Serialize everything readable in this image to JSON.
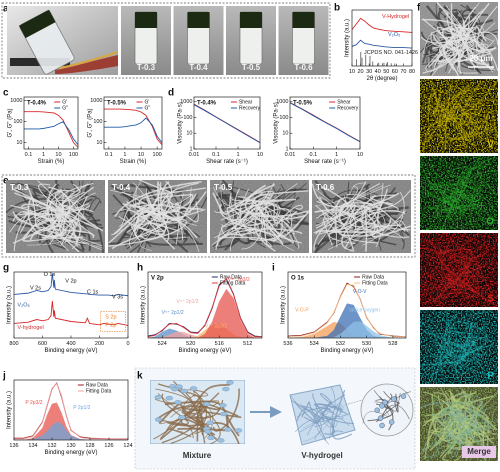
{
  "panel_labels": [
    "a",
    "b",
    "c",
    "d",
    "e",
    "f",
    "g",
    "h",
    "i",
    "j",
    "k"
  ],
  "a": {
    "labels": [
      "T-0.3",
      "T-0.4",
      "T-0.5",
      "T-0.6"
    ]
  },
  "e": {
    "labels": [
      "T-0.3",
      "T-0.4",
      "T-0.5",
      "T-0.6"
    ]
  },
  "f": {
    "scale_bar": "20 μm",
    "maps": [
      "V",
      "O",
      "S",
      "P",
      "Merge"
    ]
  },
  "k": {
    "labels": [
      "Mixture",
      "V-hydrogel"
    ]
  },
  "chart_data": [
    {
      "type": "line",
      "xlabel": "2θ (degree)",
      "ylabel": "Intensity (a.u.)",
      "x": [
        10,
        15,
        20,
        25,
        30,
        35,
        40,
        50,
        60,
        70,
        80
      ],
      "xlim": [
        10,
        80
      ],
      "xticks": [
        10,
        20,
        30,
        40,
        50,
        60,
        70,
        80
      ],
      "ylim": [
        0,
        10
      ],
      "legend": "inline",
      "series": [
        {
          "name": "V-Hydrogel",
          "color": "#d62728",
          "values": [
            6.5,
            7.5,
            8.5,
            8.0,
            7.3,
            6.8,
            6.6,
            6.3,
            6.2,
            6.1,
            6.0
          ]
        },
        {
          "name": "V₂O₅",
          "color": "#2c5aa0",
          "values": [
            3.5,
            3.8,
            4.6,
            4.0,
            3.9,
            3.7,
            3.6,
            3.4,
            3.3,
            3.3,
            3.2
          ]
        },
        {
          "name": "JCPDS NO. 041-1426",
          "color": "#222222",
          "style": "stick",
          "x": [
            15.4,
            20.3,
            21.7,
            26.1,
            31.0,
            34.3,
            41.3,
            45.5,
            47.3,
            51.2,
            55.7,
            62.1
          ],
          "values": [
            1.2,
            2.5,
            1.5,
            2.0,
            1.8,
            0.8,
            0.6,
            0.5,
            0.6,
            0.7,
            0.5,
            0.4
          ]
        }
      ]
    },
    {
      "type": "line",
      "title": "T-0.4%",
      "xlabel": "Strain (%)",
      "ylabel": "G', G'' (Pa)",
      "xscale": "log",
      "yscale": "log",
      "x": [
        0.05,
        0.1,
        0.5,
        1,
        5,
        10,
        20,
        50,
        100,
        200
      ],
      "xlim": [
        0.05,
        200
      ],
      "xticks": [
        0.1,
        1,
        10,
        100
      ],
      "ylim": [
        5,
        1500
      ],
      "yticks": [
        10,
        100,
        1000
      ],
      "legend": "upper right",
      "series": [
        {
          "name": "G'",
          "color": "#d62728",
          "values": [
            300,
            300,
            300,
            290,
            260,
            200,
            120,
            30,
            10,
            6
          ]
        },
        {
          "name": "G''",
          "color": "#1f5aa6",
          "values": [
            45,
            45,
            45,
            48,
            60,
            80,
            100,
            40,
            15,
            8
          ]
        }
      ]
    },
    {
      "type": "line",
      "title": "T-0.5%",
      "xlabel": "Strain (%)",
      "ylabel": "G', G'' (Pa)",
      "xscale": "log",
      "yscale": "log",
      "x": [
        0.05,
        0.1,
        0.5,
        1,
        5,
        10,
        20,
        50,
        100,
        200
      ],
      "xlim": [
        0.05,
        200
      ],
      "xticks": [
        0.1,
        1,
        10,
        100
      ],
      "ylim": [
        5,
        1500
      ],
      "yticks": [
        10,
        100,
        1000
      ],
      "legend": "upper right",
      "series": [
        {
          "name": "G'",
          "color": "#d62728",
          "values": [
            400,
            400,
            400,
            390,
            350,
            290,
            200,
            60,
            15,
            8
          ]
        },
        {
          "name": "G''",
          "color": "#1f5aa6",
          "values": [
            55,
            55,
            55,
            58,
            70,
            90,
            150,
            70,
            20,
            10
          ]
        }
      ]
    },
    {
      "type": "line",
      "title": "T-0.4%",
      "xlabel": "Shear rate (s⁻¹)",
      "ylabel": "Viscosity (Pa·s)",
      "xscale": "log",
      "yscale": "log",
      "x": [
        0.01,
        0.03,
        0.1,
        0.3,
        1,
        3,
        10
      ],
      "xlim": [
        0.01,
        10
      ],
      "xticks": [
        0.01,
        0.1,
        1,
        10
      ],
      "ylim": [
        1,
        2000
      ],
      "yticks": [
        1,
        10,
        100,
        1000
      ],
      "legend": "upper right",
      "series": [
        {
          "name": "Shear",
          "color": "#d62728",
          "values": [
            700,
            300,
            110,
            45,
            17,
            7,
            2.6
          ]
        },
        {
          "name": "Recovery",
          "color": "#1f5aa6",
          "values": [
            650,
            280,
            105,
            43,
            16,
            6.6,
            2.5
          ]
        }
      ]
    },
    {
      "type": "line",
      "title": "T-0.5%",
      "xlabel": "Shear rate (s⁻¹)",
      "ylabel": "Viscosity (Pa·s)",
      "xscale": "log",
      "yscale": "log",
      "x": [
        0.01,
        0.03,
        0.1,
        0.3,
        1,
        3,
        10
      ],
      "xlim": [
        0.01,
        10
      ],
      "xticks": [
        0.01,
        0.1,
        1,
        10
      ],
      "ylim": [
        1,
        2000
      ],
      "yticks": [
        1,
        10,
        100,
        1000
      ],
      "legend": "upper right",
      "series": [
        {
          "name": "Shear",
          "color": "#d62728",
          "values": [
            900,
            380,
            140,
            55,
            21,
            8,
            3
          ]
        },
        {
          "name": "Recovery",
          "color": "#1f5aa6",
          "values": [
            850,
            360,
            130,
            52,
            20,
            7.6,
            2.9
          ]
        }
      ]
    },
    {
      "type": "line",
      "xlabel": "Binding energy (eV)",
      "ylabel": "Intensity (a.u.)",
      "x": [
        800,
        700,
        640,
        600,
        560,
        540,
        531,
        520,
        517,
        510,
        400,
        300,
        285,
        270,
        200,
        170,
        135,
        100,
        70,
        0
      ],
      "xlim": [
        800,
        0
      ],
      "xticks": [
        800,
        600,
        400,
        200,
        0
      ],
      "ylim": [
        0,
        10
      ],
      "legend": "inline",
      "annotations": [
        "O 1s",
        "V 2s",
        "V 2p",
        "C 1s",
        "V 3s",
        "S 2p",
        "P 2p"
      ],
      "series": [
        {
          "name": "V₂O₅",
          "color": "#2c5aa0",
          "values": [
            6.6,
            6.8,
            7.2,
            7.0,
            7.2,
            7.8,
            9.8,
            7.6,
            8.8,
            7.4,
            6.9,
            6.7,
            6.7,
            6.6,
            6.5,
            6.5,
            6.5,
            6.4,
            6.6,
            6.4
          ]
        },
        {
          "name": "V-hydrogel",
          "color": "#d62728",
          "values": [
            2.2,
            2.4,
            2.8,
            2.6,
            2.8,
            3.4,
            5.6,
            3.2,
            4.2,
            3.0,
            2.5,
            2.3,
            3.0,
            2.2,
            2.0,
            2.2,
            2.1,
            2.0,
            2.2,
            1.9
          ]
        }
      ]
    },
    {
      "type": "line",
      "title": "V 2p",
      "xlabel": "Binding energy (eV)",
      "ylabel": "Intensity (a.u.)",
      "x": [
        526,
        525,
        524,
        523,
        522,
        521,
        520,
        519,
        518,
        517,
        516,
        515,
        514,
        513,
        512,
        511,
        510
      ],
      "xlim": [
        526,
        510
      ],
      "xticks": [
        524,
        520,
        516,
        512
      ],
      "ylim": [
        0,
        10
      ],
      "legend": "upper right",
      "components": [
        {
          "name": "V⁵⁺ 2p1/2",
          "color": "#5b8fc9",
          "values": [
            0,
            0.2,
            0.9,
            1.4,
            1.1,
            0.5,
            0.1,
            0,
            0,
            0,
            0,
            0,
            0,
            0,
            0,
            0,
            0
          ]
        },
        {
          "name": "V⁴⁺ 2p1/2",
          "color": "#f0a0a0",
          "values": [
            0,
            0,
            0.1,
            0.5,
            0.9,
            0.9,
            0.5,
            0.2,
            0,
            0,
            0,
            0,
            0,
            0,
            0,
            0,
            0
          ]
        },
        {
          "name": "V⁴⁺ 2p3/2",
          "color": "#f5b26b",
          "values": [
            0,
            0,
            0,
            0,
            0,
            0,
            0,
            0.3,
            1.2,
            2.0,
            2.2,
            1.4,
            0.5,
            0.1,
            0,
            0,
            0
          ]
        },
        {
          "name": "V⁵⁺ 2p3/2",
          "color": "#e8554e",
          "values": [
            0,
            0,
            0,
            0,
            0,
            0,
            0,
            0,
            0.6,
            2.4,
            5.5,
            7.4,
            6.0,
            2.6,
            0.6,
            0,
            0
          ]
        }
      ],
      "series": [
        {
          "name": "Raw Data",
          "color": "#1d2f6f",
          "values": [
            0.3,
            0.5,
            1.1,
            2.2,
            2.1,
            1.7,
            0.9,
            0.8,
            1.9,
            4.5,
            8.1,
            8.9,
            6.6,
            3.0,
            0.9,
            0.3,
            0.2
          ]
        },
        {
          "name": "Fitting Data",
          "color": "#e03a3a",
          "values": [
            0.2,
            0.4,
            1.2,
            2.1,
            2.2,
            1.6,
            0.8,
            0.7,
            2.0,
            4.6,
            7.9,
            9.0,
            6.7,
            2.9,
            0.8,
            0.2,
            0.2
          ]
        }
      ]
    },
    {
      "type": "line",
      "title": "O 1s",
      "xlabel": "Binding energy (eV)",
      "ylabel": "Intensity (a.u.)",
      "x": [
        536,
        535,
        534,
        533,
        532.5,
        532,
        531.5,
        531,
        530.5,
        530,
        529.5,
        529,
        528,
        527
      ],
      "xlim": [
        536,
        527
      ],
      "xticks": [
        536,
        534,
        532,
        530,
        528
      ],
      "ylim": [
        0,
        10
      ],
      "legend": "upper right",
      "components": [
        {
          "name": "V-O-P",
          "color": "#f5a05a",
          "values": [
            0,
            0.1,
            0.6,
            1.8,
            2.4,
            2.2,
            1.2,
            0.4,
            0.1,
            0,
            0,
            0,
            0,
            0
          ]
        },
        {
          "name": "V-O-V",
          "color": "#3d6fb5",
          "values": [
            0,
            0,
            0,
            0.3,
            1.2,
            3.2,
            5.2,
            5.0,
            3.0,
            1.2,
            0.3,
            0.1,
            0,
            0
          ]
        },
        {
          "name": "lattice oxygen",
          "color": "#8fc1e8",
          "values": [
            0,
            0,
            0,
            0,
            0.1,
            0.6,
            1.5,
            2.4,
            2.5,
            1.8,
            1.0,
            0.4,
            0,
            0
          ]
        }
      ],
      "series": [
        {
          "name": "Raw Data",
          "color": "#8b1a1a",
          "values": [
            0.3,
            0.4,
            0.9,
            2.4,
            3.8,
            6.3,
            8.3,
            7.8,
            5.9,
            3.1,
            1.6,
            0.6,
            0.3,
            0.2
          ]
        },
        {
          "name": "Fitting Data",
          "color": "#f7c08a",
          "values": [
            0.2,
            0.3,
            0.8,
            2.3,
            3.9,
            6.2,
            8.1,
            8.0,
            5.8,
            3.2,
            1.5,
            0.7,
            0.2,
            0.2
          ]
        }
      ]
    },
    {
      "type": "line",
      "xlabel": "Binding energy (eV)",
      "ylabel": "Intensity (a.u.)",
      "x": [
        136,
        135,
        134,
        133,
        132.5,
        132,
        131.5,
        131,
        130.5,
        130,
        129,
        128,
        126,
        124
      ],
      "xlim": [
        136,
        124
      ],
      "xticks": [
        136,
        134,
        132,
        130,
        128,
        126,
        124
      ],
      "ylim": [
        0,
        10
      ],
      "legend": "upper right",
      "components": [
        {
          "name": "P 2p3/2",
          "color": "#e8554e",
          "values": [
            0,
            0,
            0.3,
            2.0,
            4.2,
            6.0,
            6.2,
            4.5,
            2.2,
            0.8,
            0.1,
            0,
            0,
            0
          ]
        },
        {
          "name": "P 2p1/2",
          "color": "#6fa3d8",
          "values": [
            0,
            0,
            0.1,
            0.7,
            1.5,
            2.4,
            3.0,
            2.7,
            1.6,
            0.7,
            0.1,
            0,
            0,
            0
          ]
        }
      ],
      "series": [
        {
          "name": "Raw Data",
          "color": "#a01818",
          "values": [
            0.3,
            0.3,
            0.7,
            3.0,
            5.8,
            8.5,
            9.5,
            7.2,
            4.1,
            1.6,
            0.5,
            0.3,
            0.2,
            0.2
          ]
        },
        {
          "name": "Fitting Data",
          "color": "#f0a0a0",
          "values": [
            0.2,
            0.2,
            0.6,
            2.9,
            5.9,
            8.6,
            9.4,
            7.4,
            4.0,
            1.7,
            0.4,
            0.2,
            0.2,
            0.2
          ]
        }
      ]
    }
  ]
}
